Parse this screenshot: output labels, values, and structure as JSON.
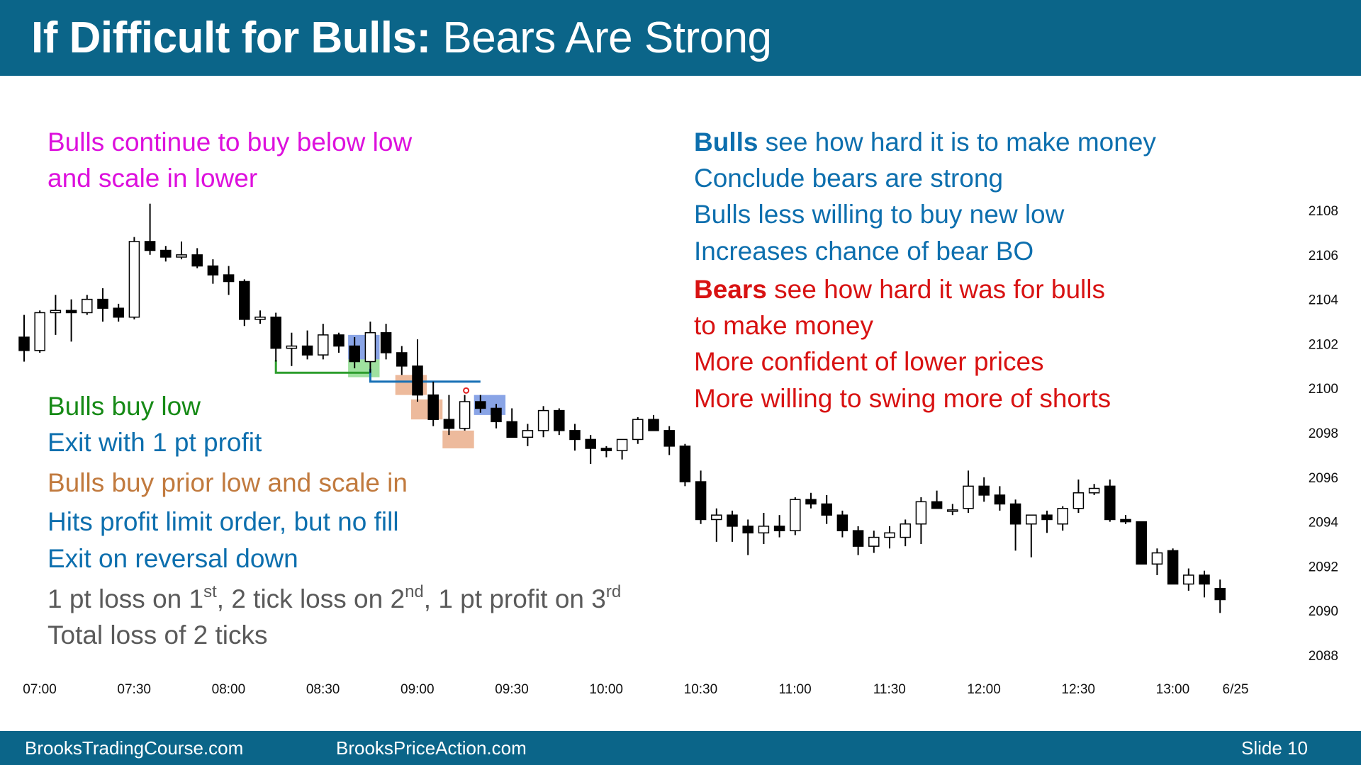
{
  "header": {
    "title_bold": "If Difficult for Bulls:",
    "title_rest": " Bears Are Strong"
  },
  "footer": {
    "left": "BrooksTradingCourse.com",
    "middle": "BrooksPriceAction.com",
    "right": "Slide  10"
  },
  "notes": {
    "bulls_scale_1": "Bulls continue to buy below low",
    "bulls_scale_2": "and scale in lower",
    "bulls_buy_low": "Bulls buy low",
    "exit_profit": "Exit with 1 pt profit",
    "buy_prior_low": "Bulls buy prior low and scale in",
    "hits_limit": "Hits profit limit order, but no fill",
    "exit_reversal": "Exit on reversal down",
    "loss_a": "1 pt loss on 1",
    "loss_a_sup": "st",
    "loss_b": ", 2 tick loss on 2",
    "loss_b_sup": "nd",
    "loss_c": ", 1 pt profit on 3",
    "loss_c_sup": "rd",
    "total_loss": "Total loss of 2 ticks",
    "r1_bold": "Bulls",
    "r1_rest": " see how hard it is to make money",
    "r2": "Conclude bears are strong",
    "r3": "Bulls less willing to buy new low",
    "r4": "Increases chance of bear BO",
    "r5_bold": "Bears",
    "r5_rest": " see how hard it was for bulls",
    "r6": "to make money",
    "r7": "More confident of lower prices",
    "r8": "More willing to swing more of shorts"
  },
  "colors": {
    "header_bg": "#0b6589",
    "bull_body": "#ffffff",
    "bear_body": "#000000"
  },
  "chart_data": {
    "type": "candlestick",
    "bar_minutes": 5,
    "x_tick_labels": [
      "07:00",
      "07:30",
      "08:00",
      "08:30",
      "09:00",
      "09:30",
      "10:00",
      "10:30",
      "11:00",
      "11:30",
      "12:00",
      "12:30",
      "13:00",
      "6/25"
    ],
    "y_tick_labels": [
      "2108",
      "2106",
      "2104",
      "2102",
      "2100",
      "2098",
      "2096",
      "2094",
      "2092",
      "2090",
      "2088"
    ],
    "ylim": [
      2088,
      2108
    ],
    "candles": [
      [
        2102.3,
        2103.3,
        2101.2,
        2101.7
      ],
      [
        2101.7,
        2103.5,
        2101.6,
        2103.4
      ],
      [
        2103.4,
        2104.2,
        2102.4,
        2103.5
      ],
      [
        2103.5,
        2104.0,
        2102.1,
        2103.4
      ],
      [
        2103.4,
        2104.2,
        2103.3,
        2104.0
      ],
      [
        2104.0,
        2104.5,
        2103.0,
        2103.6
      ],
      [
        2103.6,
        2103.8,
        2103.0,
        2103.2
      ],
      [
        2103.2,
        2106.8,
        2103.1,
        2106.6
      ],
      [
        2106.6,
        2108.3,
        2106.0,
        2106.2
      ],
      [
        2106.2,
        2106.4,
        2105.7,
        2105.9
      ],
      [
        2105.9,
        2106.6,
        2105.8,
        2106.0
      ],
      [
        2106.0,
        2106.3,
        2105.4,
        2105.5
      ],
      [
        2105.5,
        2105.8,
        2104.7,
        2105.1
      ],
      [
        2105.1,
        2105.5,
        2104.2,
        2104.8
      ],
      [
        2104.8,
        2104.9,
        2102.8,
        2103.1
      ],
      [
        2103.1,
        2103.5,
        2102.9,
        2103.2
      ],
      [
        2103.2,
        2103.4,
        2101.2,
        2101.8
      ],
      [
        2101.8,
        2102.5,
        2101.0,
        2101.9
      ],
      [
        2101.9,
        2102.6,
        2101.3,
        2101.5
      ],
      [
        2101.5,
        2102.9,
        2101.3,
        2102.4
      ],
      [
        2102.4,
        2102.5,
        2101.6,
        2101.9
      ],
      [
        2101.9,
        2102.3,
        2100.9,
        2101.2
      ],
      [
        2101.2,
        2103.0,
        2100.7,
        2102.5
      ],
      [
        2102.5,
        2102.9,
        2101.3,
        2101.6
      ],
      [
        2101.6,
        2101.9,
        2100.6,
        2101.0
      ],
      [
        2101.0,
        2102.2,
        2099.4,
        2099.7
      ],
      [
        2099.7,
        2100.3,
        2098.3,
        2098.6
      ],
      [
        2098.6,
        2099.7,
        2097.9,
        2098.2
      ],
      [
        2098.2,
        2099.7,
        2098.1,
        2099.4
      ],
      [
        2099.4,
        2099.7,
        2098.9,
        2099.1
      ],
      [
        2099.1,
        2099.3,
        2098.2,
        2098.5
      ],
      [
        2098.5,
        2099.1,
        2097.8,
        2097.8
      ],
      [
        2097.8,
        2098.4,
        2097.4,
        2098.1
      ],
      [
        2098.1,
        2099.2,
        2097.8,
        2099.0
      ],
      [
        2099.0,
        2099.1,
        2097.9,
        2098.1
      ],
      [
        2098.1,
        2098.4,
        2097.2,
        2097.7
      ],
      [
        2097.7,
        2097.9,
        2096.6,
        2097.3
      ],
      [
        2097.3,
        2097.4,
        2096.9,
        2097.2
      ],
      [
        2097.2,
        2097.7,
        2096.8,
        2097.7
      ],
      [
        2097.7,
        2098.7,
        2097.5,
        2098.6
      ],
      [
        2098.6,
        2098.8,
        2098.1,
        2098.1
      ],
      [
        2098.1,
        2098.3,
        2097.0,
        2097.4
      ],
      [
        2097.4,
        2097.5,
        2095.6,
        2095.8
      ],
      [
        2095.8,
        2096.3,
        2093.9,
        2094.1
      ],
      [
        2094.1,
        2094.6,
        2093.1,
        2094.3
      ],
      [
        2094.3,
        2094.5,
        2093.1,
        2093.8
      ],
      [
        2093.8,
        2094.1,
        2092.5,
        2093.5
      ],
      [
        2093.5,
        2094.4,
        2093.0,
        2093.8
      ],
      [
        2093.8,
        2094.3,
        2093.3,
        2093.6
      ],
      [
        2093.6,
        2095.1,
        2093.4,
        2095.0
      ],
      [
        2095.0,
        2095.3,
        2094.6,
        2094.8
      ],
      [
        2094.8,
        2095.2,
        2093.9,
        2094.3
      ],
      [
        2094.3,
        2094.5,
        2093.3,
        2093.6
      ],
      [
        2093.6,
        2093.8,
        2092.5,
        2092.9
      ],
      [
        2092.9,
        2093.6,
        2092.6,
        2093.3
      ],
      [
        2093.3,
        2093.8,
        2092.8,
        2093.5
      ],
      [
        2093.3,
        2094.1,
        2092.9,
        2093.9
      ],
      [
        2093.9,
        2095.1,
        2093.0,
        2094.9
      ],
      [
        2094.9,
        2095.4,
        2094.6,
        2094.6
      ],
      [
        2094.5,
        2094.8,
        2094.3,
        2094.5
      ],
      [
        2094.6,
        2096.3,
        2094.4,
        2095.6
      ],
      [
        2095.6,
        2096.0,
        2094.9,
        2095.2
      ],
      [
        2095.2,
        2095.6,
        2094.5,
        2094.8
      ],
      [
        2094.8,
        2095.0,
        2092.7,
        2093.9
      ],
      [
        2093.9,
        2094.3,
        2092.4,
        2094.3
      ],
      [
        2094.3,
        2094.5,
        2093.5,
        2094.1
      ],
      [
        2093.9,
        2094.7,
        2093.6,
        2094.6
      ],
      [
        2094.6,
        2095.9,
        2094.4,
        2095.3
      ],
      [
        2095.3,
        2095.7,
        2095.2,
        2095.5
      ],
      [
        2095.6,
        2095.9,
        2094.0,
        2094.1
      ],
      [
        2094.1,
        2094.3,
        2093.9,
        2094.0
      ],
      [
        2094.0,
        2094.0,
        2092.1,
        2092.1
      ],
      [
        2092.1,
        2092.8,
        2091.6,
        2092.6
      ],
      [
        2092.7,
        2092.8,
        2091.3,
        2091.2
      ],
      [
        2091.2,
        2091.9,
        2090.9,
        2091.6
      ],
      [
        2091.6,
        2091.8,
        2090.6,
        2091.2
      ],
      [
        2091.0,
        2091.4,
        2089.9,
        2090.5
      ]
    ],
    "annotations": [
      {
        "kind": "line",
        "color": "green",
        "from_bar": 16,
        "to_bar": 22,
        "price": 2100.7
      },
      {
        "kind": "line",
        "color": "blue",
        "from_bar": 22,
        "to_bar": 29,
        "price": 2100.3
      },
      {
        "kind": "box",
        "color": "blue",
        "from_bar": 21,
        "to_bar": 23,
        "top": 2102.4,
        "bottom": 2101.3
      },
      {
        "kind": "box",
        "color": "green",
        "from_bar": 21,
        "to_bar": 23,
        "top": 2101.3,
        "bottom": 2100.5
      },
      {
        "kind": "box",
        "color": "orange",
        "from_bar": 24,
        "to_bar": 26,
        "top": 2100.6,
        "bottom": 2099.7
      },
      {
        "kind": "box",
        "color": "orange",
        "from_bar": 25,
        "to_bar": 27,
        "top": 2099.5,
        "bottom": 2098.6
      },
      {
        "kind": "box",
        "color": "orange",
        "from_bar": 27,
        "to_bar": 29,
        "top": 2098.1,
        "bottom": 2097.3
      },
      {
        "kind": "box",
        "color": "blue",
        "from_bar": 29,
        "to_bar": 31,
        "top": 2099.7,
        "bottom": 2098.8
      }
    ]
  }
}
